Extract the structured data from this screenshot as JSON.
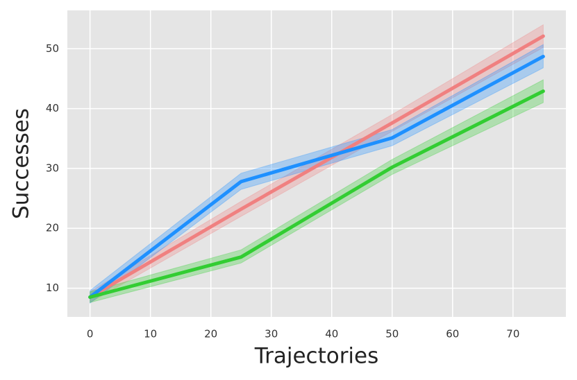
{
  "chart_data": {
    "type": "line",
    "x_label": "Trajectories",
    "y_label": "Successes",
    "x": [
      0,
      25,
      50,
      75
    ],
    "series": [
      {
        "color": "#f08080",
        "values": [
          8.5,
          23.2,
          37.6,
          52.1
        ],
        "lower": [
          7.6,
          22.0,
          36.2,
          50.2
        ],
        "upper": [
          9.4,
          24.5,
          39.0,
          54.0
        ]
      },
      {
        "color": "#1e90ff",
        "values": [
          8.5,
          27.8,
          35.1,
          48.7
        ],
        "lower": [
          7.5,
          26.5,
          33.8,
          46.8
        ],
        "upper": [
          9.6,
          29.2,
          36.5,
          50.7
        ]
      },
      {
        "color": "#32cd32",
        "values": [
          8.5,
          15.2,
          30.2,
          42.9
        ],
        "lower": [
          7.6,
          14.2,
          29.0,
          41.0
        ],
        "upper": [
          9.4,
          16.4,
          31.5,
          44.8
        ]
      }
    ],
    "xlim": [
      -3.75,
      78.75
    ],
    "ylim": [
      5.2,
      56.4
    ],
    "xticks": [
      0,
      10,
      20,
      30,
      40,
      50,
      60,
      70
    ],
    "yticks": [
      10,
      20,
      30,
      40,
      50
    ],
    "grid": true
  }
}
